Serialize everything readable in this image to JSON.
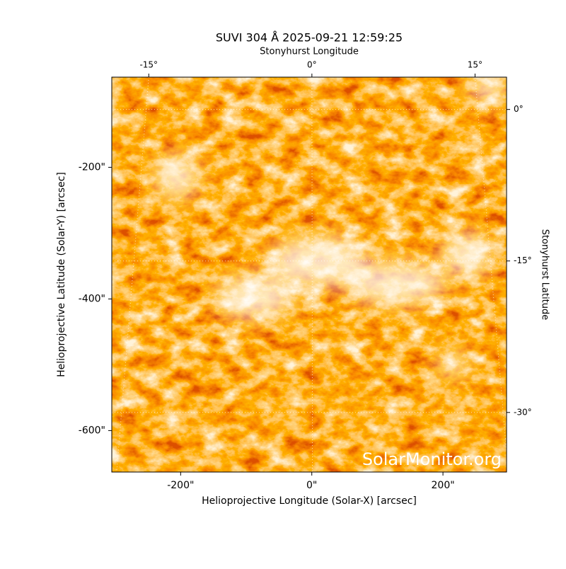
{
  "chart_data": {
    "type": "image",
    "title": "SUVI 304 Å 2025-09-21 12:59:25",
    "xlabel": "Helioprojective Longitude (Solar-X) [arcsec]",
    "ylabel": "Helioprojective Latitude (Solar-Y) [arcsec]",
    "x2label": "Stonyhurst Longitude",
    "y2label": "Stonyhurst Latitude",
    "annotation": "SolarMonitor.org",
    "xlim": [
      -305,
      297
    ],
    "ylim": [
      -663,
      -63
    ],
    "xticks": [
      {
        "value": -200,
        "label": "-200\""
      },
      {
        "value": 0,
        "label": "0\""
      },
      {
        "value": 200,
        "label": "200\""
      }
    ],
    "yticks": [
      {
        "value": -200,
        "label": "-200\""
      },
      {
        "value": -400,
        "label": "-400\""
      },
      {
        "value": -600,
        "label": "-600\""
      }
    ],
    "x2lim": [
      -18.4,
      17.9
    ],
    "y2lim": [
      -35.9,
      3.2
    ],
    "x2ticks": [
      {
        "value": -15,
        "label": "-15°"
      },
      {
        "value": 0,
        "label": "0°"
      },
      {
        "value": 15,
        "label": "15°"
      }
    ],
    "y2ticks": [
      {
        "value": 0,
        "label": "0°"
      },
      {
        "value": -15,
        "label": "-15°"
      },
      {
        "value": -30,
        "label": "-30°"
      }
    ],
    "grid": true
  }
}
